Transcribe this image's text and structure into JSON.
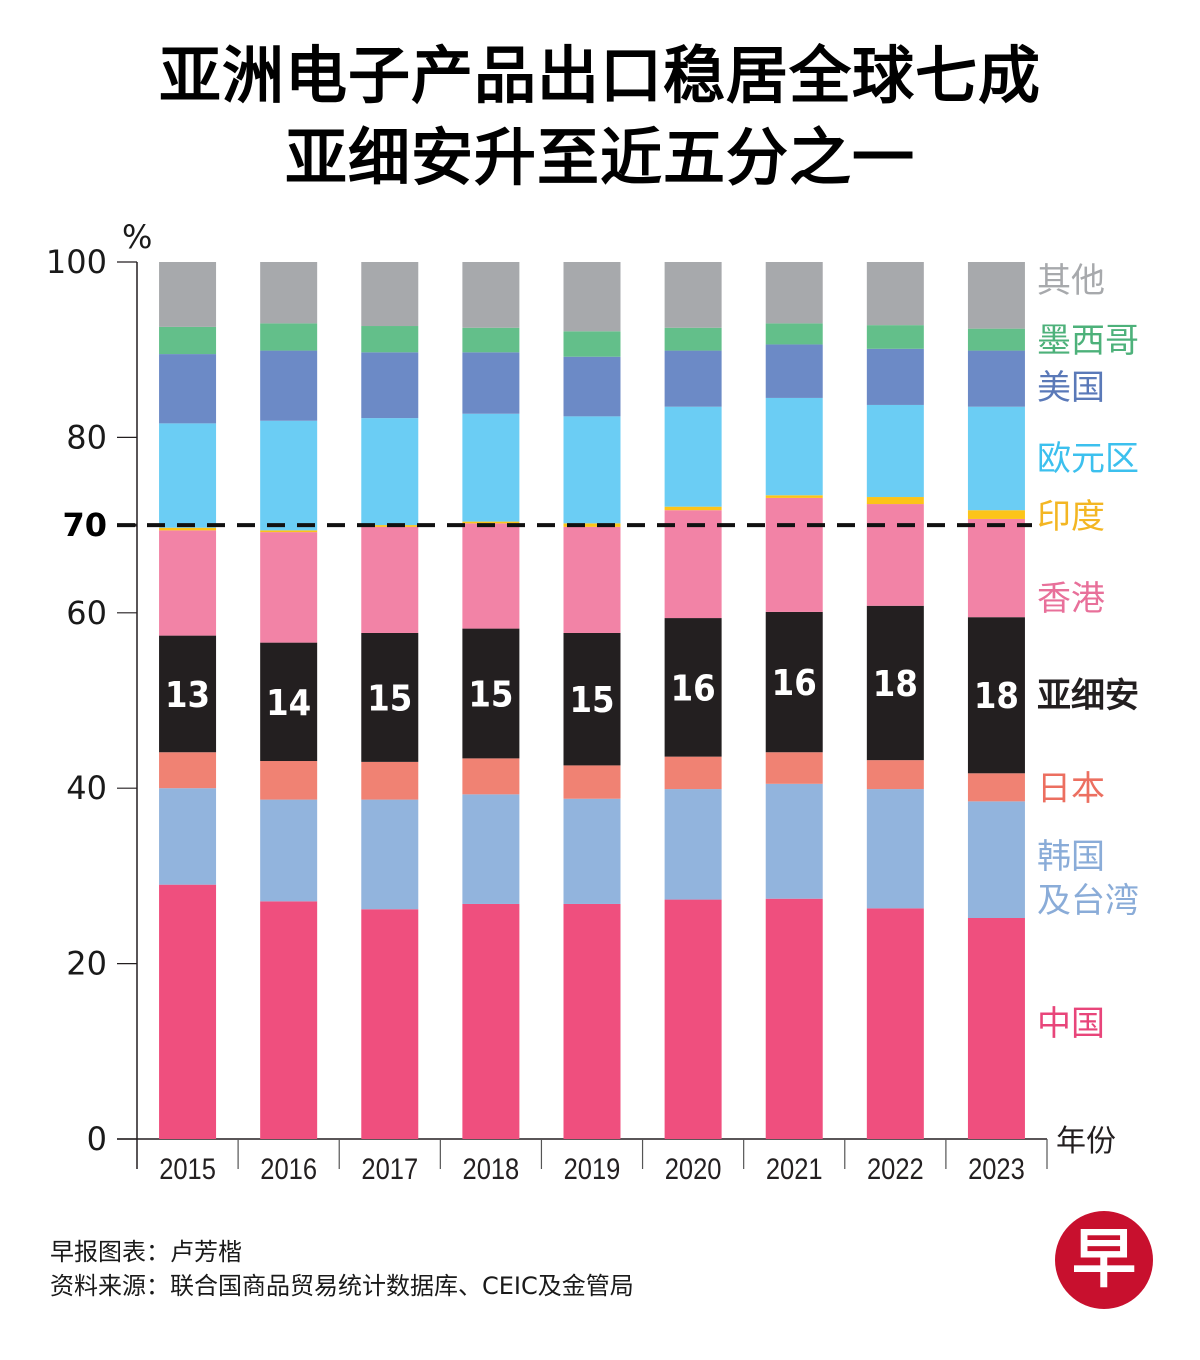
{
  "header": {
    "title_line1": "亚洲电子产品出口稳居全球七成",
    "title_line2": "亚细安升至近五分之一"
  },
  "footer": {
    "credit": "早报图表：卢芳楷",
    "source": "资料来源：联合国商品贸易统计数据库、CEIC及金管局",
    "logo_glyph": "早",
    "logo_color": "#c8102e"
  },
  "chart_data": {
    "type": "bar",
    "stacked": true,
    "title": "亚洲电子产品出口稳居全球七成 亚细安升至近五分之一",
    "ylabel": "%",
    "xlabel": "年份",
    "ylim": [
      0,
      100
    ],
    "yticks": [
      "0",
      "20",
      "40",
      "60",
      "80",
      "100"
    ],
    "reference_line": {
      "value": 70,
      "label": "70",
      "style": "dashed"
    },
    "categories": [
      "2015",
      "2016",
      "2017",
      "2018",
      "2019",
      "2020",
      "2021",
      "2022",
      "2023"
    ],
    "legend_position": "right",
    "series": [
      {
        "name": "中国",
        "color": "#ef4f7e",
        "values": [
          29.0,
          27.1,
          26.2,
          26.8,
          26.8,
          27.3,
          27.4,
          26.3,
          25.2
        ]
      },
      {
        "name": "韩国及台湾",
        "color": "#92b4dd",
        "values": [
          11.0,
          11.6,
          12.5,
          12.5,
          12.0,
          12.6,
          13.1,
          13.6,
          13.3
        ]
      },
      {
        "name": "日本",
        "color": "#f08273",
        "values": [
          4.1,
          4.4,
          4.3,
          4.1,
          3.8,
          3.7,
          3.6,
          3.3,
          3.2
        ]
      },
      {
        "name": "亚细安",
        "color": "#231f20",
        "values": [
          13.3,
          13.5,
          14.7,
          14.8,
          15.1,
          15.8,
          16.0,
          17.6,
          17.8
        ],
        "labels": [
          "13",
          "14",
          "15",
          "15",
          "15",
          "16",
          "16",
          "18",
          "18"
        ]
      },
      {
        "name": "香港",
        "color": "#f283a6",
        "values": [
          12.0,
          12.6,
          12.1,
          12.0,
          12.1,
          12.3,
          13.0,
          11.6,
          11.2
        ]
      },
      {
        "name": "印度",
        "color": "#fcc419",
        "values": [
          0.3,
          0.2,
          0.2,
          0.2,
          0.4,
          0.4,
          0.3,
          0.8,
          1.0
        ]
      },
      {
        "name": "欧元区",
        "color": "#6bcdf4",
        "values": [
          11.9,
          12.5,
          12.2,
          12.3,
          12.2,
          11.4,
          11.1,
          10.5,
          11.8
        ]
      },
      {
        "name": "美国",
        "color": "#6c8ac6",
        "values": [
          7.9,
          8.0,
          7.5,
          7.0,
          6.8,
          6.4,
          6.1,
          6.4,
          6.4
        ]
      },
      {
        "name": "墨西哥",
        "color": "#63bf8a",
        "values": [
          3.1,
          3.1,
          3.0,
          2.8,
          2.9,
          2.6,
          2.4,
          2.7,
          2.5
        ]
      },
      {
        "name": "其他",
        "color": "#a7a9ac",
        "values": [
          7.4,
          7.0,
          7.3,
          7.5,
          7.9,
          7.5,
          7.0,
          7.2,
          7.6
        ]
      }
    ],
    "legend": [
      {
        "label": "其他",
        "color": "#a7a9ac"
      },
      {
        "label": "墨西哥",
        "color": "#4db17a"
      },
      {
        "label": "美国",
        "color": "#5a79b8"
      },
      {
        "label": "欧元区",
        "color": "#3cc0ee"
      },
      {
        "label": "印度",
        "color": "#f3b623"
      },
      {
        "label": "香港",
        "color": "#e8709a"
      },
      {
        "label": "亚细安",
        "color": "#231f20",
        "bold": true
      },
      {
        "label": "日本",
        "color": "#ec6f60"
      },
      {
        "label": "韩国",
        "label2": "及台湾",
        "color": "#8aacd8"
      },
      {
        "label": "中国",
        "color": "#e8457a"
      }
    ]
  }
}
